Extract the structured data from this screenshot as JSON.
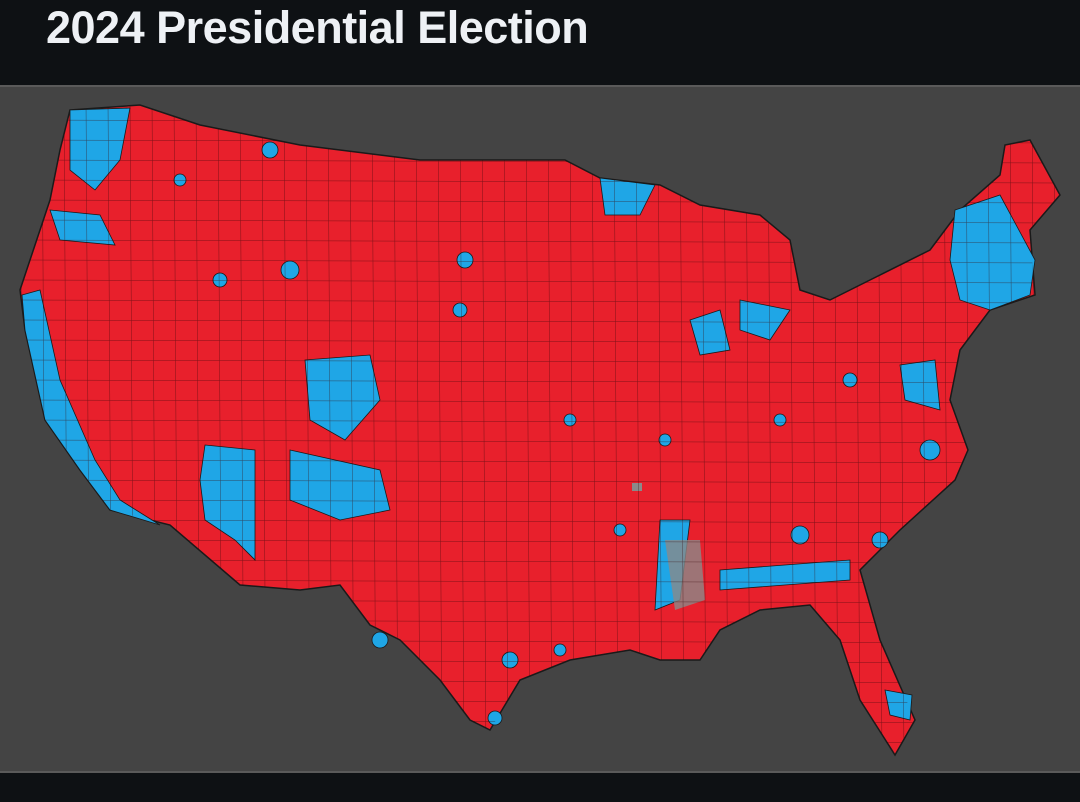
{
  "header": {
    "title": "2024 Presidential Election"
  },
  "map": {
    "colors": {
      "republican": "#e8202c",
      "democrat": "#1fa6e6",
      "no_data": "#8a8a8a",
      "background": "#444444",
      "border": "#1a1a1a"
    }
  }
}
